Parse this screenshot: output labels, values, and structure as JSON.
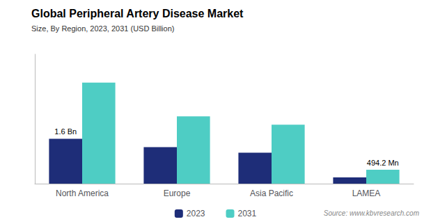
{
  "chart_data": {
    "type": "bar",
    "title": "Global Peripheral Artery Disease Market",
    "subtitle": "Size, By Region, 2023, 2031 (USD Billion)",
    "source": "Source: www.kbvresearch.com",
    "categories": [
      "North America",
      "Europe",
      "Asia Pacific",
      "LAMEA"
    ],
    "series": [
      {
        "name": "2023",
        "color": "#1e2d78",
        "values": [
          1.6,
          1.3,
          1.1,
          0.22
        ]
      },
      {
        "name": "2031",
        "color": "#4ecdc4",
        "values": [
          3.6,
          2.4,
          2.1,
          0.4942
        ]
      }
    ],
    "annotations": [
      {
        "text": "1.6 Bn",
        "category": "North America",
        "series": "2023"
      },
      {
        "text": "494.2 Mn",
        "category": "LAMEA",
        "series": "2031"
      }
    ],
    "ylim": [
      0,
      4.608
    ],
    "tick_labels": "x",
    "grid": false,
    "legend": "bottom"
  }
}
